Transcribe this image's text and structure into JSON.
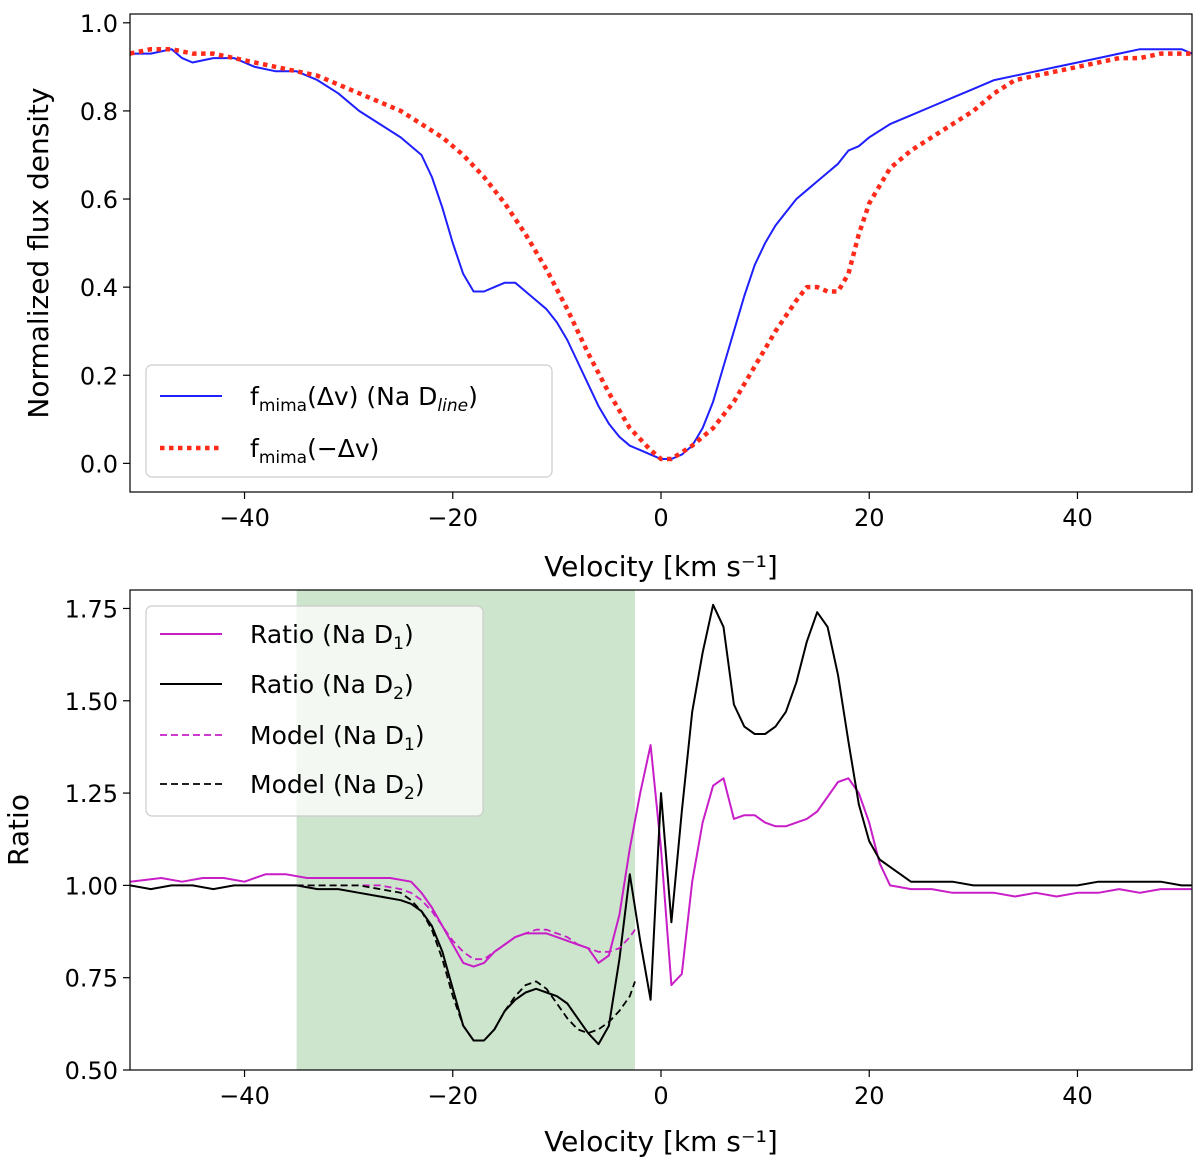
{
  "chart_data": [
    {
      "type": "line",
      "xlabel": "Velocity [km s⁻¹]",
      "ylabel": "Normalized flux density",
      "xlim": [
        -51,
        51
      ],
      "ylim": [
        -0.065,
        1.02
      ],
      "xticks": [
        -40,
        -20,
        0,
        20,
        40
      ],
      "xtick_labels": [
        "−40",
        "−20",
        "0",
        "20",
        "40"
      ],
      "yticks": [
        0.0,
        0.2,
        0.4,
        0.6,
        0.8,
        1.0
      ],
      "ytick_labels": [
        "0.0",
        "0.2",
        "0.4",
        "0.6",
        "0.8",
        "1.0"
      ],
      "legend_position": "lower-left",
      "series": [
        {
          "name": "f_mima(Δv) (Na D_line)",
          "legend_main": "f",
          "legend_sub": "mima",
          "legend_rest": "(Δv) (Na D",
          "legend_sub2": "line",
          "legend_end": ")",
          "color": "#1f1fff",
          "style": "solid",
          "x": [
            -51,
            -49,
            -47,
            -46,
            -45,
            -43,
            -41,
            -39,
            -37,
            -35,
            -33,
            -31,
            -29,
            -27,
            -25,
            -23,
            -22,
            -21,
            -20,
            -19,
            -18,
            -17,
            -16,
            -15,
            -14,
            -13,
            -12,
            -11,
            -10,
            -9,
            -8,
            -7,
            -6,
            -5,
            -4,
            -3,
            -2,
            -1,
            0,
            1,
            2,
            3,
            4,
            5,
            6,
            7,
            8,
            9,
            10,
            11,
            12,
            13,
            14,
            15,
            16,
            17,
            18,
            19,
            20,
            22,
            24,
            26,
            28,
            30,
            32,
            34,
            36,
            38,
            40,
            42,
            44,
            46,
            48,
            50,
            51
          ],
          "y": [
            0.93,
            0.93,
            0.94,
            0.92,
            0.91,
            0.92,
            0.92,
            0.9,
            0.89,
            0.89,
            0.87,
            0.84,
            0.8,
            0.77,
            0.74,
            0.7,
            0.65,
            0.58,
            0.5,
            0.43,
            0.39,
            0.39,
            0.4,
            0.41,
            0.41,
            0.39,
            0.37,
            0.35,
            0.32,
            0.28,
            0.23,
            0.18,
            0.13,
            0.09,
            0.06,
            0.04,
            0.03,
            0.02,
            0.01,
            0.01,
            0.02,
            0.04,
            0.08,
            0.14,
            0.22,
            0.3,
            0.38,
            0.45,
            0.5,
            0.54,
            0.57,
            0.6,
            0.62,
            0.64,
            0.66,
            0.68,
            0.71,
            0.72,
            0.74,
            0.77,
            0.79,
            0.81,
            0.83,
            0.85,
            0.87,
            0.88,
            0.89,
            0.9,
            0.91,
            0.92,
            0.93,
            0.94,
            0.94,
            0.94,
            0.93
          ]
        },
        {
          "name": "f_mima(−Δv)",
          "legend_main": "f",
          "legend_sub": "mima",
          "legend_rest": "(−Δv)",
          "legend_sub2": "",
          "legend_end": "",
          "color": "#ff2a1a",
          "style": "dotted",
          "x": [
            -51,
            -49,
            -47,
            -45,
            -43,
            -41,
            -39,
            -37,
            -35,
            -33,
            -31,
            -29,
            -27,
            -25,
            -23,
            -21,
            -19,
            -17,
            -15,
            -13,
            -11,
            -9,
            -7,
            -5,
            -3,
            -1,
            0,
            1,
            3,
            5,
            7,
            9,
            11,
            13,
            14,
            15,
            16,
            17,
            18,
            19,
            20,
            21,
            22,
            24,
            26,
            28,
            30,
            32,
            34,
            36,
            38,
            40,
            42,
            44,
            46,
            48,
            50,
            51
          ],
          "y": [
            0.93,
            0.94,
            0.94,
            0.93,
            0.93,
            0.92,
            0.91,
            0.9,
            0.89,
            0.88,
            0.86,
            0.84,
            0.82,
            0.8,
            0.77,
            0.74,
            0.7,
            0.65,
            0.59,
            0.52,
            0.44,
            0.35,
            0.25,
            0.16,
            0.08,
            0.03,
            0.01,
            0.01,
            0.04,
            0.08,
            0.14,
            0.22,
            0.3,
            0.37,
            0.4,
            0.4,
            0.39,
            0.39,
            0.43,
            0.52,
            0.59,
            0.63,
            0.67,
            0.71,
            0.74,
            0.77,
            0.8,
            0.84,
            0.87,
            0.88,
            0.89,
            0.9,
            0.91,
            0.92,
            0.92,
            0.93,
            0.93,
            0.93
          ]
        }
      ]
    },
    {
      "type": "line",
      "xlabel": "Velocity [km s⁻¹]",
      "ylabel": "Ratio",
      "xlim": [
        -51,
        51
      ],
      "ylim": [
        0.5,
        1.8
      ],
      "xticks": [
        -40,
        -20,
        0,
        20,
        40
      ],
      "xtick_labels": [
        "−40",
        "−20",
        "0",
        "20",
        "40"
      ],
      "yticks": [
        0.5,
        0.75,
        1.0,
        1.25,
        1.5,
        1.75
      ],
      "ytick_labels": [
        "0.50",
        "0.75",
        "1.00",
        "1.25",
        "1.50",
        "1.75"
      ],
      "legend_position": "upper-left",
      "shaded_region": {
        "x": [
          -35,
          -2.5
        ],
        "color": "#cde4cd"
      },
      "series": [
        {
          "name": "Ratio (Na D_1)",
          "legend_main": "Ratio (Na D",
          "legend_sub": "1",
          "legend_rest": ")",
          "color": "#c81ec8",
          "style": "solid",
          "x": [
            -51,
            -48,
            -46,
            -44,
            -42,
            -40,
            -38,
            -36,
            -34,
            -32,
            -30,
            -28,
            -26,
            -24,
            -23,
            -22,
            -21,
            -20,
            -19,
            -18,
            -17,
            -16,
            -15,
            -14,
            -13,
            -12,
            -11,
            -10,
            -9,
            -8,
            -7,
            -6,
            -5,
            -4,
            -3,
            -2,
            -1,
            0,
            1,
            2,
            3,
            4,
            5,
            6,
            7,
            8,
            9,
            10,
            11,
            12,
            13,
            14,
            15,
            16,
            17,
            18,
            19,
            20,
            21,
            22,
            24,
            26,
            28,
            30,
            32,
            34,
            36,
            38,
            40,
            42,
            44,
            46,
            48,
            50,
            51
          ],
          "y": [
            1.01,
            1.02,
            1.01,
            1.02,
            1.02,
            1.01,
            1.03,
            1.03,
            1.02,
            1.02,
            1.02,
            1.02,
            1.02,
            1.01,
            0.98,
            0.94,
            0.89,
            0.84,
            0.79,
            0.78,
            0.79,
            0.82,
            0.84,
            0.86,
            0.87,
            0.87,
            0.87,
            0.86,
            0.85,
            0.84,
            0.83,
            0.79,
            0.81,
            0.92,
            1.1,
            1.25,
            1.38,
            1.1,
            0.73,
            0.76,
            1.01,
            1.17,
            1.27,
            1.29,
            1.18,
            1.19,
            1.19,
            1.17,
            1.16,
            1.16,
            1.17,
            1.18,
            1.2,
            1.24,
            1.28,
            1.29,
            1.25,
            1.17,
            1.06,
            1.0,
            0.99,
            0.99,
            0.98,
            0.98,
            0.98,
            0.97,
            0.98,
            0.97,
            0.98,
            0.98,
            0.99,
            0.98,
            0.99,
            0.99,
            0.99
          ]
        },
        {
          "name": "Ratio (Na D_2)",
          "legend_main": "Ratio (Na D",
          "legend_sub": "2",
          "legend_rest": ")",
          "color": "#000000",
          "style": "solid",
          "x": [
            -51,
            -49,
            -47,
            -45,
            -43,
            -41,
            -39,
            -37,
            -35,
            -33,
            -31,
            -29,
            -27,
            -25,
            -24,
            -23,
            -22,
            -21,
            -20,
            -19,
            -18,
            -17,
            -16,
            -15,
            -14,
            -13,
            -12,
            -11,
            -10,
            -9,
            -8,
            -7,
            -6,
            -5,
            -4,
            -3,
            -2,
            -1,
            0,
            1,
            2,
            3,
            4,
            5,
            6,
            7,
            8,
            9,
            10,
            11,
            12,
            13,
            14,
            15,
            16,
            17,
            18,
            19,
            20,
            21,
            22,
            23,
            24,
            26,
            28,
            30,
            32,
            34,
            36,
            38,
            40,
            42,
            44,
            46,
            48,
            50,
            51
          ],
          "y": [
            1.0,
            0.99,
            1.0,
            1.0,
            0.99,
            1.0,
            1.0,
            1.0,
            1.0,
            0.99,
            0.99,
            0.98,
            0.97,
            0.96,
            0.95,
            0.93,
            0.89,
            0.82,
            0.72,
            0.62,
            0.58,
            0.58,
            0.61,
            0.66,
            0.69,
            0.71,
            0.72,
            0.71,
            0.7,
            0.68,
            0.64,
            0.6,
            0.57,
            0.62,
            0.8,
            1.03,
            0.85,
            0.69,
            1.25,
            0.9,
            1.2,
            1.47,
            1.63,
            1.76,
            1.7,
            1.49,
            1.43,
            1.41,
            1.41,
            1.43,
            1.47,
            1.55,
            1.66,
            1.74,
            1.7,
            1.57,
            1.39,
            1.22,
            1.12,
            1.07,
            1.05,
            1.03,
            1.01,
            1.01,
            1.01,
            1.0,
            1.0,
            1.0,
            1.0,
            1.0,
            1.0,
            1.01,
            1.01,
            1.01,
            1.01,
            1.0,
            1.0
          ]
        },
        {
          "name": "Model (Na D_1)",
          "legend_main": "Model (Na D",
          "legend_sub": "1",
          "legend_rest": ")",
          "color": "#c81ec8",
          "style": "dashed",
          "x": [
            -35,
            -33,
            -31,
            -29,
            -27,
            -25,
            -24,
            -23,
            -22,
            -21,
            -20,
            -19,
            -18,
            -17,
            -16,
            -15,
            -14,
            -13,
            -12,
            -11,
            -10,
            -9,
            -8,
            -7,
            -6,
            -5,
            -4,
            -3,
            -2.5
          ],
          "y": [
            1.0,
            1.0,
            1.0,
            1.0,
            1.0,
            0.99,
            0.98,
            0.96,
            0.93,
            0.89,
            0.85,
            0.82,
            0.8,
            0.8,
            0.82,
            0.84,
            0.86,
            0.87,
            0.88,
            0.88,
            0.87,
            0.86,
            0.84,
            0.83,
            0.82,
            0.82,
            0.83,
            0.86,
            0.88
          ]
        },
        {
          "name": "Model (Na D_2)",
          "legend_main": "Model (Na D",
          "legend_sub": "2",
          "legend_rest": ")",
          "color": "#000000",
          "style": "dashed",
          "x": [
            -35,
            -33,
            -31,
            -29,
            -27,
            -25,
            -24,
            -23,
            -22,
            -21,
            -20,
            -19,
            -18,
            -17,
            -16,
            -15,
            -14,
            -13,
            -12,
            -11,
            -10,
            -9,
            -8,
            -7,
            -6,
            -5,
            -4,
            -3,
            -2.5
          ],
          "y": [
            1.0,
            1.0,
            1.0,
            1.0,
            0.99,
            0.98,
            0.96,
            0.93,
            0.88,
            0.8,
            0.7,
            0.62,
            0.58,
            0.58,
            0.61,
            0.66,
            0.7,
            0.73,
            0.74,
            0.72,
            0.68,
            0.64,
            0.61,
            0.6,
            0.61,
            0.63,
            0.66,
            0.7,
            0.74
          ]
        }
      ]
    }
  ]
}
